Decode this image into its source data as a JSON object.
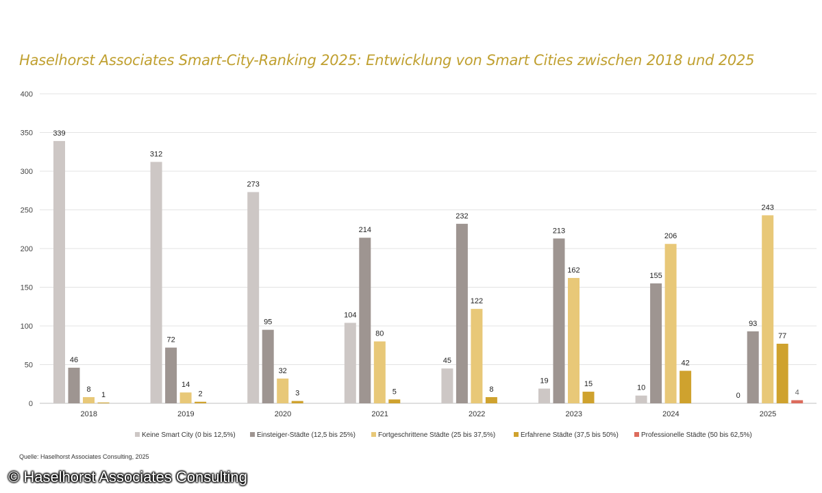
{
  "title": "Haselhorst Associates Smart-City-Ranking 2025: Entwicklung von Smart Cities zwischen 2018 und 2025",
  "source": "Quelle: Haselhorst Associates Consulting, 2025",
  "watermark": "© Haselhorst Associates Consulting",
  "chart_data": {
    "type": "bar",
    "title": "Haselhorst Associates Smart-City-Ranking 2025: Entwicklung von Smart Cities zwischen 2018 und 2025",
    "xlabel": "",
    "ylabel": "",
    "ylim": [
      0,
      400
    ],
    "yticks": [
      0,
      50,
      100,
      150,
      200,
      250,
      300,
      350,
      400
    ],
    "grid": true,
    "legend_position": "bottom",
    "categories": [
      "2018",
      "2019",
      "2020",
      "2021",
      "2022",
      "2023",
      "2024",
      "2025"
    ],
    "series": [
      {
        "name": "Keine Smart City (0 bis 12,5%)",
        "color": "#cdc7c5",
        "values": [
          339,
          312,
          273,
          104,
          45,
          19,
          10,
          0
        ]
      },
      {
        "name": "Einsteiger-Städte (12,5 bis 25%)",
        "color": "#9e9591",
        "values": [
          46,
          72,
          95,
          214,
          232,
          213,
          155,
          93
        ]
      },
      {
        "name": "Fortgeschrittene Städte (25 bis 37,5%)",
        "color": "#e8c878",
        "values": [
          8,
          14,
          32,
          80,
          122,
          162,
          206,
          243
        ]
      },
      {
        "name": "Erfahrene Städte (37,5 bis 50%)",
        "color": "#cfa22e",
        "values": [
          1,
          2,
          3,
          5,
          8,
          15,
          42,
          77
        ]
      },
      {
        "name": "Professionelle Städte (50 bis 62,5%)",
        "color": "#dc6b5c",
        "values": [
          null,
          null,
          null,
          null,
          null,
          null,
          null,
          4
        ]
      }
    ]
  }
}
